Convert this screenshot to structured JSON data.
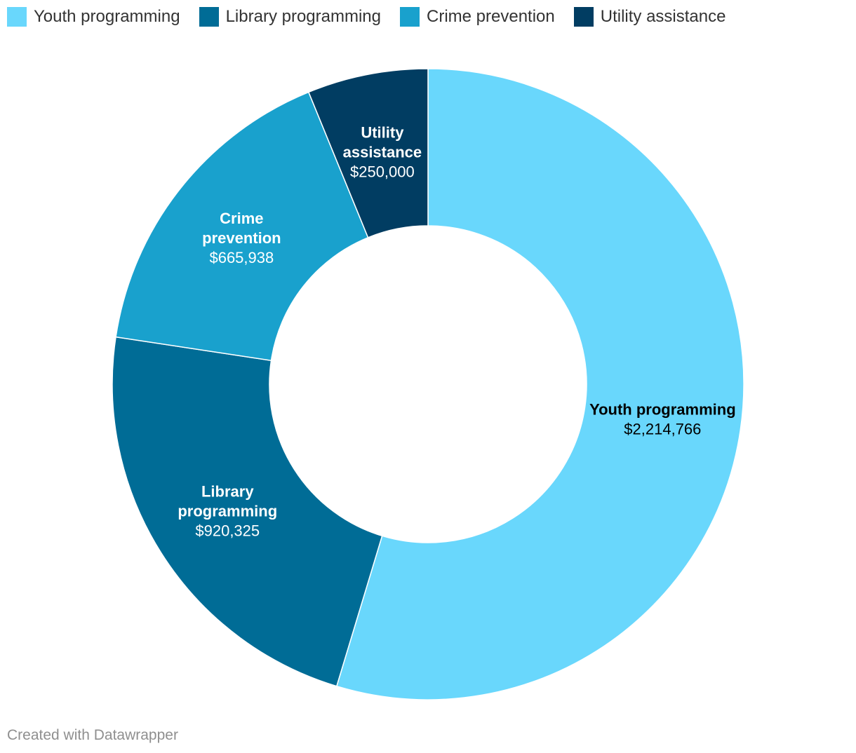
{
  "chart_data": {
    "type": "donut",
    "unit_prefix": "$",
    "categories": [
      "Youth programming",
      "Library programming",
      "Crime prevention",
      "Utility assistance"
    ],
    "values": [
      2214766,
      920325,
      665938,
      250000
    ],
    "value_labels": [
      "$2,214,766",
      "$920,325",
      "$665,938",
      "$250,000"
    ],
    "slice_labels": [
      [
        "Youth programming"
      ],
      [
        "Library",
        "programming"
      ],
      [
        "Crime",
        "prevention"
      ],
      [
        "Utility",
        "assistance"
      ]
    ],
    "colors": [
      "#69d7fc",
      "#006c96",
      "#19a1cd",
      "#013d62"
    ],
    "label_colors": [
      "#000000",
      "#ffffff",
      "#ffffff",
      "#ffffff"
    ],
    "legend_position": "top-left",
    "start_angle": "12 o'clock",
    "direction": "clockwise"
  },
  "legend": {
    "items": [
      {
        "label": "Youth programming",
        "color": "#69d7fc"
      },
      {
        "label": "Library programming",
        "color": "#006c96"
      },
      {
        "label": "Crime prevention",
        "color": "#19a1cd"
      },
      {
        "label": "Utility assistance",
        "color": "#013d62"
      }
    ]
  },
  "footer": {
    "credit": "Created with Datawrapper"
  }
}
